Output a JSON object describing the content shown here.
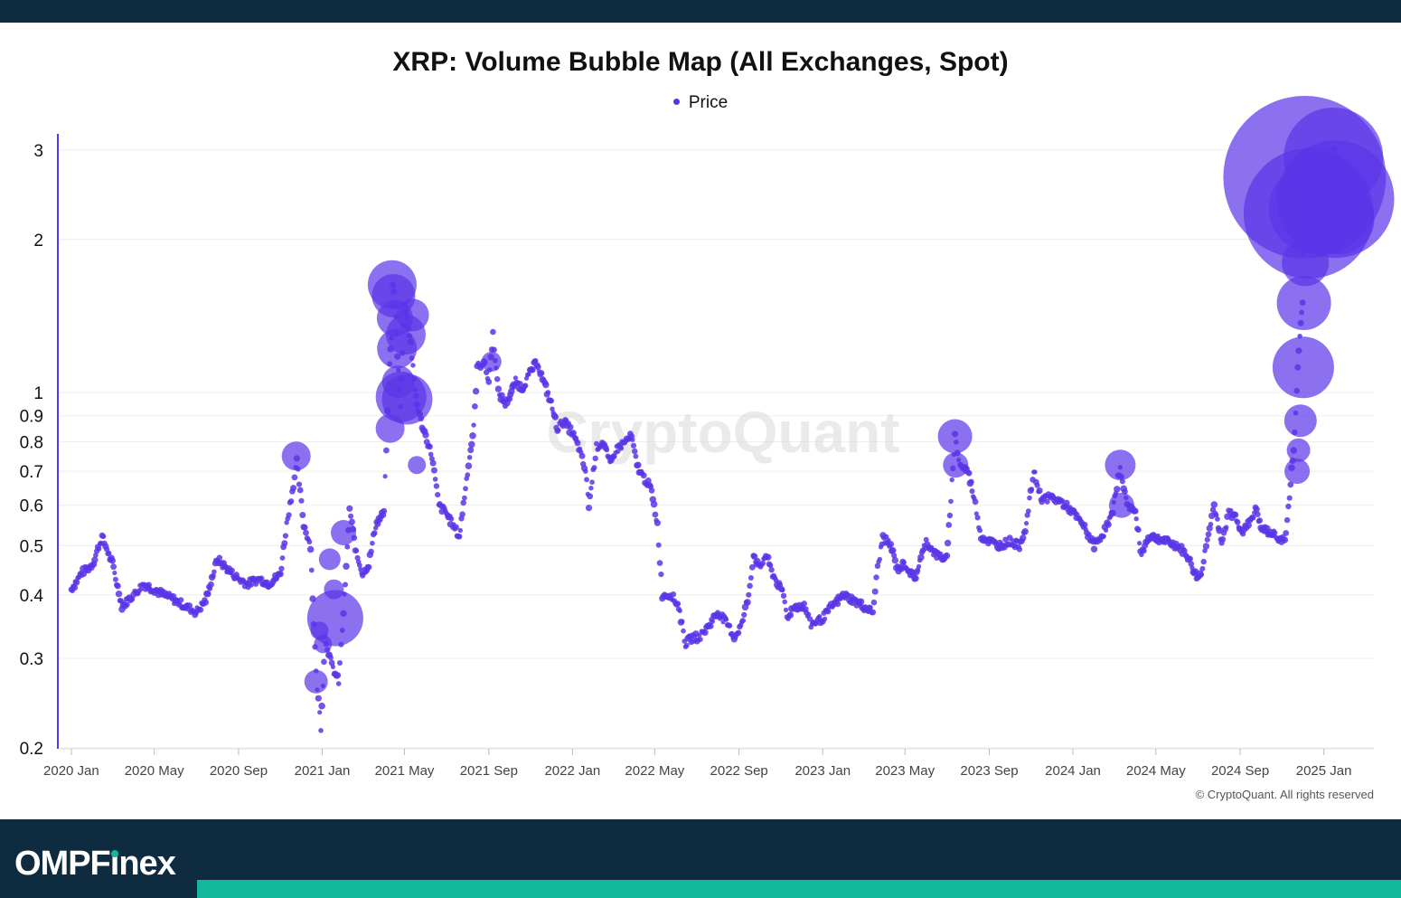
{
  "header": {
    "title": "XRP: Volume Bubble Map (All Exchanges, Spot)"
  },
  "legend": {
    "label": "Price",
    "color": "#5a35e8"
  },
  "watermark": "CryptoQuant",
  "copyright": "© CryptoQuant. All rights reserved",
  "brand": {
    "prefix": "OMPF",
    "i_letter": "ı",
    "suffix": "nex",
    "accent": "#13b89a",
    "bar_color": "#0f2b40"
  },
  "chart_data": {
    "type": "scatter",
    "title": "XRP: Volume Bubble Map (All Exchanges, Spot)",
    "xlabel": "",
    "ylabel": "",
    "y_scale": "log",
    "ylim": [
      0.2,
      3.2
    ],
    "xlim": [
      "2019-12-15",
      "2025-03-15"
    ],
    "grid": true,
    "legend_position": "top-center",
    "y_ticks": [
      0.2,
      0.3,
      0.4,
      0.5,
      0.6,
      0.7,
      0.8,
      0.9,
      1,
      2,
      3
    ],
    "x_ticks": [
      {
        "date": "2020-01-01",
        "label": "2020 Jan"
      },
      {
        "date": "2020-05-01",
        "label": "2020 May"
      },
      {
        "date": "2020-09-01",
        "label": "2020 Sep"
      },
      {
        "date": "2021-01-01",
        "label": "2021 Jan"
      },
      {
        "date": "2021-05-01",
        "label": "2021 May"
      },
      {
        "date": "2021-09-01",
        "label": "2021 Sep"
      },
      {
        "date": "2022-01-01",
        "label": "2022 Jan"
      },
      {
        "date": "2022-05-01",
        "label": "2022 May"
      },
      {
        "date": "2022-09-01",
        "label": "2022 Sep"
      },
      {
        "date": "2023-01-01",
        "label": "2023 Jan"
      },
      {
        "date": "2023-05-01",
        "label": "2023 May"
      },
      {
        "date": "2023-09-01",
        "label": "2023 Sep"
      },
      {
        "date": "2024-01-01",
        "label": "2024 Jan"
      },
      {
        "date": "2024-05-01",
        "label": "2024 May"
      },
      {
        "date": "2024-09-01",
        "label": "2024 Sep"
      },
      {
        "date": "2025-01-01",
        "label": "2025 Jan"
      }
    ],
    "series": [
      {
        "name": "Price",
        "color": "#5a35e8",
        "points": [
          [
            "2020-01-01",
            0.41
          ],
          [
            "2020-01-15",
            0.44
          ],
          [
            "2020-02-01",
            0.46
          ],
          [
            "2020-02-15",
            0.52
          ],
          [
            "2020-03-01",
            0.46
          ],
          [
            "2020-03-15",
            0.38
          ],
          [
            "2020-04-01",
            0.4
          ],
          [
            "2020-04-15",
            0.42
          ],
          [
            "2020-05-01",
            0.41
          ],
          [
            "2020-05-15",
            0.4
          ],
          [
            "2020-06-01",
            0.39
          ],
          [
            "2020-06-15",
            0.38
          ],
          [
            "2020-07-01",
            0.37
          ],
          [
            "2020-07-15",
            0.39
          ],
          [
            "2020-08-01",
            0.47
          ],
          [
            "2020-08-15",
            0.45
          ],
          [
            "2020-09-01",
            0.43
          ],
          [
            "2020-09-15",
            0.42
          ],
          [
            "2020-10-01",
            0.43
          ],
          [
            "2020-10-15",
            0.42
          ],
          [
            "2020-11-01",
            0.44
          ],
          [
            "2020-11-10",
            0.55
          ],
          [
            "2020-11-20",
            0.66
          ],
          [
            "2020-11-25",
            0.73
          ],
          [
            "2020-12-05",
            0.55
          ],
          [
            "2020-12-15",
            0.5
          ],
          [
            "2020-12-23",
            0.28
          ],
          [
            "2020-12-30",
            0.22
          ],
          [
            "2021-01-05",
            0.33
          ],
          [
            "2021-01-15",
            0.29
          ],
          [
            "2021-01-25",
            0.27
          ],
          [
            "2021-02-01",
            0.37
          ],
          [
            "2021-02-05",
            0.45
          ],
          [
            "2021-02-10",
            0.59
          ],
          [
            "2021-02-20",
            0.48
          ],
          [
            "2021-03-01",
            0.44
          ],
          [
            "2021-03-10",
            0.46
          ],
          [
            "2021-03-20",
            0.55
          ],
          [
            "2021-04-01",
            0.58
          ],
          [
            "2021-04-08",
            1.05
          ],
          [
            "2021-04-12",
            1.3
          ],
          [
            "2021-04-14",
            1.65
          ],
          [
            "2021-04-18",
            1.4
          ],
          [
            "2021-04-22",
            1.1
          ],
          [
            "2021-04-25",
            0.95
          ],
          [
            "2021-05-01",
            1.5
          ],
          [
            "2021-05-05",
            1.4
          ],
          [
            "2021-05-10",
            1.25
          ],
          [
            "2021-05-15",
            1.05
          ],
          [
            "2021-05-19",
            0.95
          ],
          [
            "2021-05-25",
            0.88
          ],
          [
            "2021-06-01",
            0.82
          ],
          [
            "2021-06-10",
            0.75
          ],
          [
            "2021-06-20",
            0.6
          ],
          [
            "2021-07-01",
            0.58
          ],
          [
            "2021-07-10",
            0.55
          ],
          [
            "2021-07-20",
            0.52
          ],
          [
            "2021-08-01",
            0.7
          ],
          [
            "2021-08-10",
            0.85
          ],
          [
            "2021-08-15",
            1.12
          ],
          [
            "2021-08-25",
            1.15
          ],
          [
            "2021-09-01",
            1.05
          ],
          [
            "2021-09-07",
            1.3
          ],
          [
            "2021-09-15",
            1.0
          ],
          [
            "2021-09-25",
            0.95
          ],
          [
            "2021-10-01",
            0.98
          ],
          [
            "2021-10-10",
            1.05
          ],
          [
            "2021-10-20",
            1.02
          ],
          [
            "2021-11-01",
            1.1
          ],
          [
            "2021-11-10",
            1.15
          ],
          [
            "2021-11-20",
            1.05
          ],
          [
            "2021-12-01",
            0.95
          ],
          [
            "2021-12-10",
            0.85
          ],
          [
            "2021-12-20",
            0.88
          ],
          [
            "2022-01-01",
            0.83
          ],
          [
            "2022-01-10",
            0.78
          ],
          [
            "2022-01-20",
            0.7
          ],
          [
            "2022-01-25",
            0.6
          ],
          [
            "2022-02-05",
            0.78
          ],
          [
            "2022-02-15",
            0.8
          ],
          [
            "2022-02-25",
            0.72
          ],
          [
            "2022-03-05",
            0.77
          ],
          [
            "2022-03-15",
            0.79
          ],
          [
            "2022-03-28",
            0.82
          ],
          [
            "2022-04-05",
            0.72
          ],
          [
            "2022-04-15",
            0.68
          ],
          [
            "2022-04-25",
            0.65
          ],
          [
            "2022-05-05",
            0.55
          ],
          [
            "2022-05-12",
            0.4
          ],
          [
            "2022-05-25",
            0.4
          ],
          [
            "2022-06-05",
            0.38
          ],
          [
            "2022-06-15",
            0.32
          ],
          [
            "2022-06-25",
            0.33
          ],
          [
            "2022-07-05",
            0.33
          ],
          [
            "2022-07-20",
            0.35
          ],
          [
            "2022-08-01",
            0.37
          ],
          [
            "2022-08-15",
            0.35
          ],
          [
            "2022-08-25",
            0.33
          ],
          [
            "2022-09-05",
            0.35
          ],
          [
            "2022-09-15",
            0.4
          ],
          [
            "2022-09-22",
            0.48
          ],
          [
            "2022-10-01",
            0.45
          ],
          [
            "2022-10-10",
            0.48
          ],
          [
            "2022-10-20",
            0.44
          ],
          [
            "2022-11-05",
            0.4
          ],
          [
            "2022-11-10",
            0.36
          ],
          [
            "2022-11-20",
            0.38
          ],
          [
            "2022-12-05",
            0.38
          ],
          [
            "2022-12-15",
            0.35
          ],
          [
            "2023-01-01",
            0.36
          ],
          [
            "2023-01-15",
            0.38
          ],
          [
            "2023-02-01",
            0.4
          ],
          [
            "2023-02-15",
            0.39
          ],
          [
            "2023-03-01",
            0.38
          ],
          [
            "2023-03-15",
            0.37
          ],
          [
            "2023-03-22",
            0.45
          ],
          [
            "2023-03-30",
            0.52
          ],
          [
            "2023-04-10",
            0.5
          ],
          [
            "2023-04-20",
            0.45
          ],
          [
            "2023-05-01",
            0.46
          ],
          [
            "2023-05-15",
            0.43
          ],
          [
            "2023-06-01",
            0.51
          ],
          [
            "2023-06-15",
            0.48
          ],
          [
            "2023-07-01",
            0.47
          ],
          [
            "2023-07-13",
            0.82
          ],
          [
            "2023-07-20",
            0.72
          ],
          [
            "2023-08-01",
            0.7
          ],
          [
            "2023-08-10",
            0.62
          ],
          [
            "2023-08-20",
            0.52
          ],
          [
            "2023-09-01",
            0.51
          ],
          [
            "2023-09-15",
            0.5
          ],
          [
            "2023-10-01",
            0.51
          ],
          [
            "2023-10-15",
            0.5
          ],
          [
            "2023-10-25",
            0.55
          ],
          [
            "2023-11-05",
            0.7
          ],
          [
            "2023-11-15",
            0.62
          ],
          [
            "2023-12-01",
            0.62
          ],
          [
            "2023-12-15",
            0.61
          ],
          [
            "2024-01-01",
            0.58
          ],
          [
            "2024-01-15",
            0.55
          ],
          [
            "2024-02-01",
            0.5
          ],
          [
            "2024-02-15",
            0.53
          ],
          [
            "2024-02-28",
            0.58
          ],
          [
            "2024-03-10",
            0.72
          ],
          [
            "2024-03-15",
            0.64
          ],
          [
            "2024-03-22",
            0.6
          ],
          [
            "2024-04-01",
            0.58
          ],
          [
            "2024-04-10",
            0.48
          ],
          [
            "2024-04-20",
            0.52
          ],
          [
            "2024-05-01",
            0.52
          ],
          [
            "2024-05-15",
            0.51
          ],
          [
            "2024-06-01",
            0.5
          ],
          [
            "2024-06-15",
            0.48
          ],
          [
            "2024-07-01",
            0.43
          ],
          [
            "2024-07-08",
            0.45
          ],
          [
            "2024-07-15",
            0.52
          ],
          [
            "2024-07-25",
            0.6
          ],
          [
            "2024-08-05",
            0.5
          ],
          [
            "2024-08-15",
            0.58
          ],
          [
            "2024-08-25",
            0.57
          ],
          [
            "2024-09-05",
            0.53
          ],
          [
            "2024-09-15",
            0.56
          ],
          [
            "2024-09-25",
            0.59
          ],
          [
            "2024-10-01",
            0.54
          ],
          [
            "2024-10-15",
            0.53
          ],
          [
            "2024-10-25",
            0.52
          ],
          [
            "2024-11-05",
            0.51
          ],
          [
            "2024-11-12",
            0.62
          ],
          [
            "2024-11-15",
            0.7
          ],
          [
            "2024-11-18",
            0.78
          ],
          [
            "2024-11-21",
            0.9
          ],
          [
            "2024-11-24",
            1.12
          ],
          [
            "2024-11-27",
            1.3
          ],
          [
            "2024-12-01",
            1.5
          ],
          [
            "2024-12-03",
            2.4
          ],
          [
            "2024-12-05",
            2.3
          ],
          [
            "2024-12-10",
            2.2
          ],
          [
            "2024-12-15",
            2.4
          ],
          [
            "2024-12-20",
            2.2
          ],
          [
            "2024-12-25",
            2.2
          ],
          [
            "2025-01-01",
            2.4
          ],
          [
            "2025-01-08",
            2.55
          ],
          [
            "2025-01-15",
            3.0
          ],
          [
            "2025-01-20",
            2.9
          ],
          [
            "2025-01-25",
            2.8
          ],
          [
            "2025-02-01",
            2.7
          ],
          [
            "2025-02-10",
            2.5
          ],
          [
            "2025-02-20",
            2.3
          ]
        ],
        "bubbles": [
          [
            "2020-11-24",
            0.75,
            16
          ],
          [
            "2020-12-23",
            0.27,
            13
          ],
          [
            "2020-12-28",
            0.34,
            10
          ],
          [
            "2021-01-02",
            0.32,
            10
          ],
          [
            "2021-01-12",
            0.47,
            12
          ],
          [
            "2021-01-18",
            0.41,
            11
          ],
          [
            "2021-01-20",
            0.36,
            31
          ],
          [
            "2021-02-01",
            0.53,
            14
          ],
          [
            "2021-04-13",
            1.63,
            27
          ],
          [
            "2021-04-15",
            1.55,
            24
          ],
          [
            "2021-04-17",
            1.4,
            20
          ],
          [
            "2021-04-20",
            1.22,
            22
          ],
          [
            "2021-04-22",
            1.05,
            18
          ],
          [
            "2021-04-26",
            0.98,
            28
          ],
          [
            "2021-05-05",
            0.97,
            28
          ],
          [
            "2021-05-03",
            1.3,
            22
          ],
          [
            "2021-04-10",
            0.85,
            16
          ],
          [
            "2021-05-13",
            1.42,
            18
          ],
          [
            "2021-05-19",
            0.72,
            10
          ],
          [
            "2021-09-05",
            1.15,
            11
          ],
          [
            "2023-07-13",
            0.82,
            19
          ],
          [
            "2023-07-14",
            0.72,
            14
          ],
          [
            "2024-03-10",
            0.72,
            17
          ],
          [
            "2024-03-12",
            0.6,
            14
          ],
          [
            "2024-11-23",
            0.7,
            14
          ],
          [
            "2024-11-25",
            0.77,
            13
          ],
          [
            "2024-11-28",
            0.88,
            18
          ],
          [
            "2024-12-02",
            1.12,
            34
          ],
          [
            "2024-12-03",
            1.5,
            30
          ],
          [
            "2024-12-05",
            1.8,
            26
          ],
          [
            "2024-12-04",
            2.65,
            90
          ],
          [
            "2024-12-10",
            2.25,
            72
          ],
          [
            "2025-01-15",
            2.9,
            55
          ],
          [
            "2025-01-18",
            2.4,
            65
          ],
          [
            "2025-01-22",
            2.2,
            40
          ],
          [
            "2024-12-18",
            2.3,
            50
          ]
        ]
      }
    ]
  }
}
